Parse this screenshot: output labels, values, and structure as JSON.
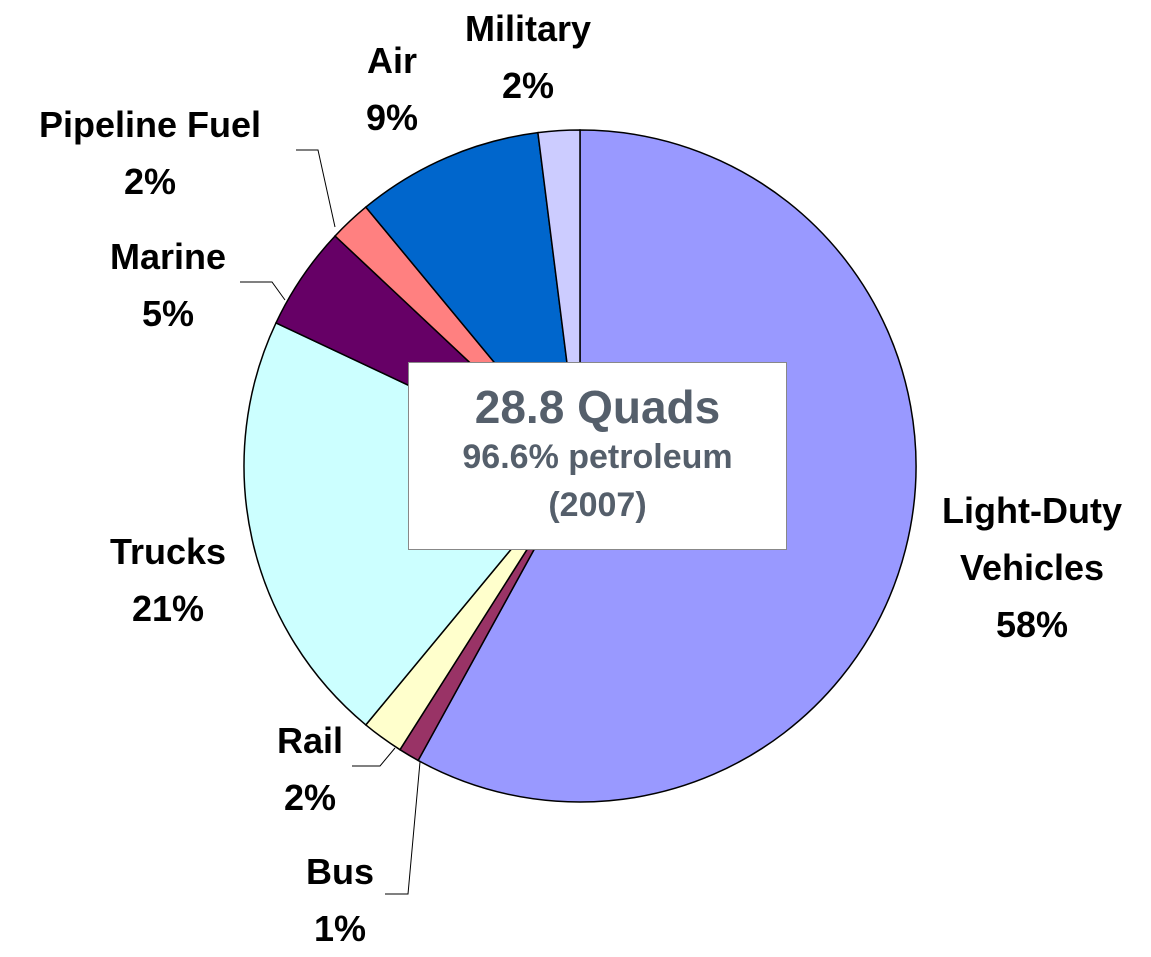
{
  "chart_data": {
    "type": "pie",
    "categories": [
      "Light-Duty Vehicles",
      "Bus",
      "Rail",
      "Trucks",
      "Marine",
      "Pipeline Fuel",
      "Air",
      "Military"
    ],
    "values": [
      58,
      1,
      2,
      21,
      5,
      2,
      9,
      2
    ],
    "value_labels": [
      "58%",
      "1%",
      "2%",
      "21%",
      "5%",
      "2%",
      "9%",
      "2%"
    ],
    "colors": [
      "#9999ff",
      "#993366",
      "#ffffcc",
      "#ccffff",
      "#660066",
      "#ff8080",
      "#0066cc",
      "#ccccff"
    ],
    "annotations": [
      "28.8 Quads",
      "96.6% petroleum",
      "(2007)"
    ]
  }
}
